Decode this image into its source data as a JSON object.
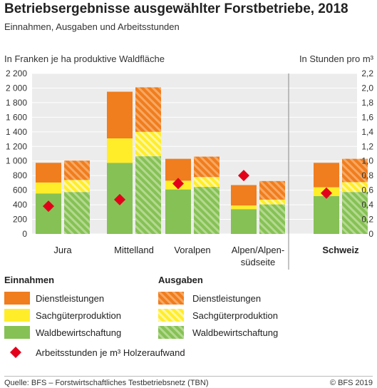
{
  "title": "Betriebsergebnisse ausgewählter Forstbetriebe, 2018",
  "subtitle": "Einnahmen, Ausgaben und Arbeitsstunden",
  "footer": {
    "source": "Quelle: BFS – Forstwirtschaftliches Testbetriebsnetz (TBN)",
    "copyright": "© BFS 2019"
  },
  "colors": {
    "dienst": "#f07d1e",
    "sach": "#ffed2a",
    "wald": "#86c155",
    "diamond": "#e2001a"
  },
  "chart_data": {
    "type": "bar",
    "categories": [
      "Jura",
      "Mittelland",
      "Voralpen",
      "Alpen/Alpen-\nsüdseite",
      "Schweiz"
    ],
    "highlight_category": "Schweiz",
    "ylabel_left": "In Franken je ha produktive Waldfläche",
    "ylabel_right": "In Stunden pro m³",
    "ylim_left": [
      0,
      2200
    ],
    "ylim_right": [
      0,
      2.2
    ],
    "y_ticks_left": [
      "0",
      "200",
      "400",
      "600",
      "800",
      "1 000",
      "1 200",
      "1 400",
      "1 600",
      "1 800",
      "2 000",
      "2 200"
    ],
    "y_ticks_right": [
      "0",
      "0,2",
      "0,4",
      "0,6",
      "0,8",
      "1,0",
      "1,2",
      "1,4",
      "1,6",
      "1,8",
      "2,0",
      "2,2"
    ],
    "einnahmen": {
      "label": "Einnahmen",
      "series": [
        {
          "name": "Waldbewirtschaftung",
          "values": [
            555,
            975,
            610,
            340,
            520
          ]
        },
        {
          "name": "Sachgüterproduktion",
          "values": [
            150,
            335,
            120,
            50,
            120
          ]
        },
        {
          "name": "Dienstleistungen",
          "values": [
            270,
            640,
            300,
            280,
            335
          ]
        }
      ]
    },
    "ausgaben": {
      "label": "Ausgaben",
      "series": [
        {
          "name": "Waldbewirtschaftung",
          "values": [
            575,
            1065,
            645,
            405,
            575
          ]
        },
        {
          "name": "Sachgüterproduktion",
          "values": [
            165,
            335,
            135,
            65,
            135
          ]
        },
        {
          "name": "Dienstleistungen",
          "values": [
            265,
            610,
            280,
            255,
            320
          ]
        }
      ]
    },
    "arbeitsstunden": {
      "label": "Arbeitsstunden je m³ Holzeraufwand",
      "values": [
        0.38,
        0.47,
        0.69,
        0.8,
        0.56
      ]
    }
  }
}
